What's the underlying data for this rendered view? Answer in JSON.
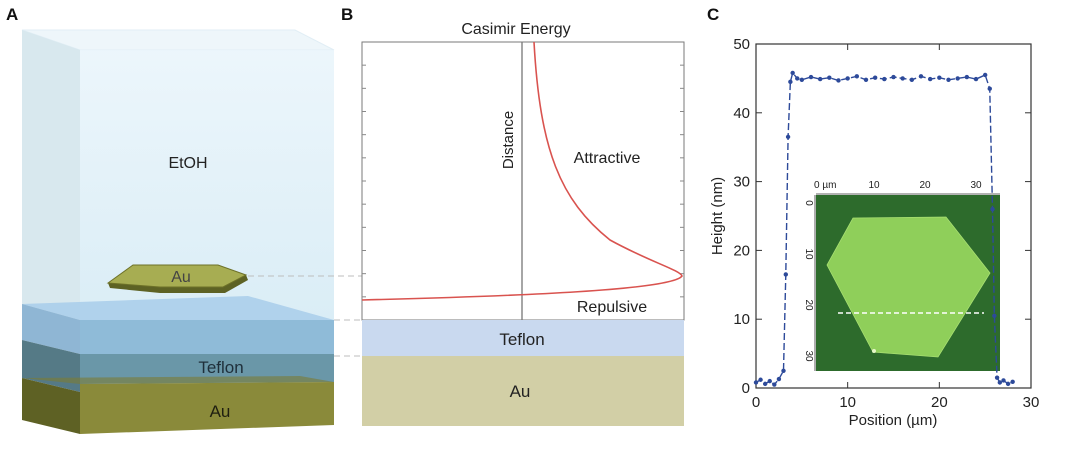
{
  "panel_a": {
    "letter": "A",
    "labels": {
      "etoh": "EtOH",
      "flake": "Au",
      "teflon": "Teflon",
      "substrate": "Au"
    }
  },
  "panel_b": {
    "letter": "B",
    "title": "Casimir Energy",
    "axis_label": "Distance",
    "attractive": "Attractive",
    "repulsive": "Repulsive",
    "teflon": "Teflon",
    "substrate": "Au",
    "colors": {
      "curve": "#d9534f",
      "teflon": "#c9d9ef",
      "gold": "#d2cfa6"
    }
  },
  "panel_c": {
    "letter": "C"
  },
  "chart_data": {
    "type": "line",
    "xlabel": "Position (µm)",
    "ylabel": "Height (nm)",
    "xlim": [
      0,
      30
    ],
    "ylim": [
      0,
      50
    ],
    "x_ticks": [
      0,
      10,
      20,
      30
    ],
    "y_ticks": [
      0,
      10,
      20,
      30,
      40,
      50
    ],
    "series": [
      {
        "color": "#2d4a9a",
        "x": [
          0.0,
          0.5,
          1.0,
          1.5,
          2.0,
          2.5,
          3.0,
          3.25,
          3.5,
          3.75,
          4.0,
          4.5,
          5.0,
          6.0,
          7.0,
          8.0,
          9.0,
          10.0,
          11.0,
          12.0,
          13.0,
          14.0,
          15.0,
          16.0,
          17.0,
          18.0,
          19.0,
          20.0,
          21.0,
          22.0,
          23.0,
          24.0,
          25.0,
          25.5,
          25.8,
          26.0,
          26.3,
          26.6,
          27.0,
          27.5,
          28.0
        ],
        "y": [
          0.8,
          1.2,
          0.6,
          1.0,
          0.5,
          1.3,
          2.5,
          16.5,
          36.5,
          44.5,
          45.8,
          45.0,
          44.8,
          45.2,
          44.9,
          45.1,
          44.7,
          45.0,
          45.3,
          44.8,
          45.1,
          44.9,
          45.2,
          45.0,
          44.8,
          45.3,
          44.9,
          45.1,
          44.8,
          45.0,
          45.2,
          44.9,
          45.5,
          43.5,
          26.0,
          10.5,
          1.5,
          0.8,
          1.1,
          0.6,
          0.9
        ]
      }
    ],
    "inset": {
      "type": "image",
      "x_ticks": [
        "0 µm",
        "10",
        "20",
        "30"
      ],
      "y_ticks": [
        "0",
        "10",
        "20",
        "30"
      ],
      "colors": {
        "background": "#2d6b2c",
        "flake": "#8fcf5a",
        "line": "#ffffff"
      }
    }
  }
}
